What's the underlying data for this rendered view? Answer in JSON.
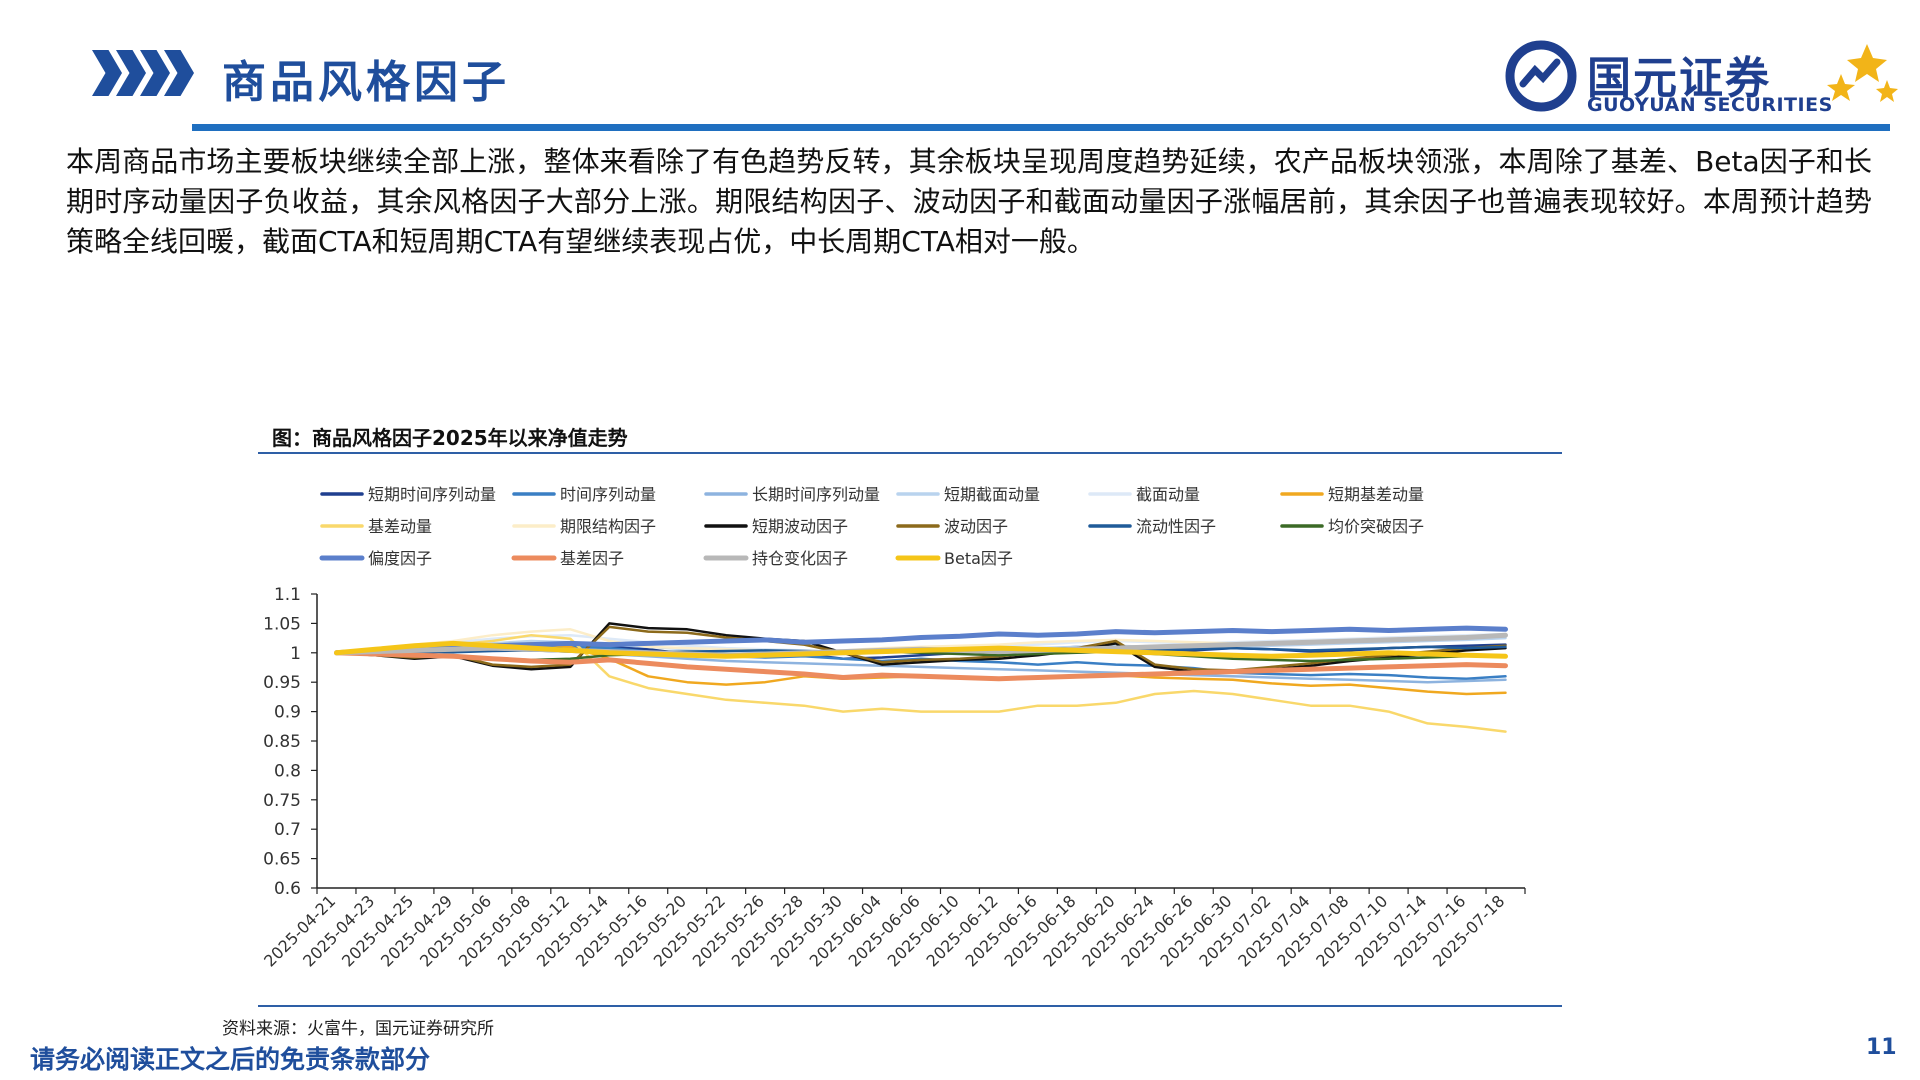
{
  "header": {
    "title": "商品风格因子",
    "logo_cn": "国元证券",
    "logo_en": "GUOYUAN SECURITIES"
  },
  "body_text": "本周商品市场主要板块继续全部上涨，整体来看除了有色趋势反转，其余板块呈现周度趋势延续，农产品板块领涨，本周除了基差、Beta因子和长期时序动量因子负收益，其余风格因子大部分上涨。期限结构因子、波动因子和截面动量因子涨幅居前，其余因子也普遍表现较好。本周预计趋势策略全线回暖，截面CTA和短周期CTA有望继续表现占优，中长周期CTA相对一般。",
  "chart_title": "图：商品风格因子2025年以来净值走势",
  "source": "资料来源：火富牛，国元证券研究所",
  "footer": {
    "disclaimer": "请务必阅读正文之后的免责条款部分",
    "page": "11"
  },
  "colors": {
    "brand_blue": "#1f4e9c",
    "rule_blue": "#1f6fc0",
    "logo_gold": "#f2b418"
  },
  "chart_data": {
    "type": "line",
    "x": [
      "2025-04-21",
      "2025-04-23",
      "2025-04-25",
      "2025-04-29",
      "2025-05-06",
      "2025-05-08",
      "2025-05-12",
      "2025-05-14",
      "2025-05-16",
      "2025-05-20",
      "2025-05-22",
      "2025-05-26",
      "2025-05-28",
      "2025-05-30",
      "2025-06-04",
      "2025-06-06",
      "2025-06-10",
      "2025-06-12",
      "2025-06-16",
      "2025-06-18",
      "2025-06-20",
      "2025-06-24",
      "2025-06-26",
      "2025-06-30",
      "2025-07-02",
      "2025-07-04",
      "2025-07-08",
      "2025-07-10",
      "2025-07-14",
      "2025-07-16",
      "2025-07-18"
    ],
    "y_ticks": [
      "1.1",
      "1.05",
      "1",
      "0.95",
      "0.9",
      "0.85",
      "0.8",
      "0.75",
      "0.7",
      "0.65",
      "0.6"
    ],
    "ylim": [
      0.6,
      1.1
    ],
    "grid": false,
    "legend_position": "top",
    "series": [
      {
        "name": "短期时间序列动量",
        "color": "#1f3f8f",
        "width": 2.5,
        "values": [
          1,
          1.002,
          0.998,
          1.004,
          1.006,
          1.004,
          1.008,
          1.01,
          1.006,
          0.998,
          0.996,
          0.994,
          0.998,
          0.99,
          0.992,
          0.996,
          1,
          1.004,
          1.006,
          1.01,
          1.012,
          1.006,
          1.004,
          1.008,
          1.006,
          1.002,
          1.004,
          1.008,
          1.01,
          1.012,
          1.014
        ]
      },
      {
        "name": "时间序列动量",
        "color": "#3a7fc4",
        "width": 2.5,
        "values": [
          1,
          1.002,
          1.004,
          1.006,
          1.01,
          1.012,
          1.01,
          1.008,
          1.002,
          0.996,
          0.994,
          0.992,
          0.994,
          0.99,
          0.986,
          0.99,
          0.986,
          0.984,
          0.98,
          0.984,
          0.98,
          0.978,
          0.974,
          0.966,
          0.964,
          0.962,
          0.964,
          0.962,
          0.958,
          0.956,
          0.96
        ]
      },
      {
        "name": "长期时间序列动量",
        "color": "#8db3df",
        "width": 2.5,
        "values": [
          1,
          1.001,
          1.002,
          1.004,
          1.006,
          1.004,
          1.002,
          0.998,
          0.994,
          0.99,
          0.986,
          0.984,
          0.982,
          0.98,
          0.978,
          0.976,
          0.974,
          0.972,
          0.97,
          0.968,
          0.966,
          0.964,
          0.962,
          0.96,
          0.958,
          0.956,
          0.954,
          0.952,
          0.95,
          0.952,
          0.954
        ]
      },
      {
        "name": "短期截面动量",
        "color": "#b9d3ee",
        "width": 2.5,
        "values": [
          1,
          1.004,
          1.008,
          1.012,
          1.016,
          1.02,
          1.018,
          1.014,
          1.01,
          1.006,
          1.004,
          1.002,
          1,
          0.998,
          1,
          1.002,
          1.004,
          1.006,
          1.008,
          1.01,
          1.012,
          1.01,
          1.008,
          1.01,
          1.012,
          1.014,
          1.016,
          1.018,
          1.02,
          1.022,
          1.025
        ]
      },
      {
        "name": "截面动量",
        "color": "#dde9f7",
        "width": 2.5,
        "values": [
          1,
          1.006,
          1.012,
          1.018,
          1.024,
          1.028,
          1.03,
          1.024,
          1.018,
          1.012,
          1.008,
          1.006,
          1.004,
          1,
          1.004,
          1.008,
          1.01,
          1.012,
          1.014,
          1.018,
          1.02,
          1.018,
          1.016,
          1.018,
          1.02,
          1.022,
          1.024,
          1.026,
          1.028,
          1.03,
          1.032
        ]
      },
      {
        "name": "短期基差动量",
        "color": "#f0a820",
        "width": 2.5,
        "values": [
          1,
          1.004,
          1.006,
          1.008,
          1.012,
          1.016,
          1.01,
          0.99,
          0.96,
          0.95,
          0.946,
          0.95,
          0.96,
          0.956,
          0.958,
          0.96,
          0.958,
          0.956,
          0.958,
          0.96,
          0.962,
          0.958,
          0.956,
          0.954,
          0.948,
          0.944,
          0.946,
          0.94,
          0.934,
          0.93,
          0.932
        ]
      },
      {
        "name": "基差动量",
        "color": "#f9d86b",
        "width": 2.5,
        "values": [
          1,
          1.004,
          1.01,
          1.014,
          1.02,
          1.03,
          1.024,
          0.96,
          0.94,
          0.93,
          0.92,
          0.915,
          0.91,
          0.9,
          0.905,
          0.9,
          0.9,
          0.9,
          0.91,
          0.91,
          0.915,
          0.93,
          0.935,
          0.93,
          0.92,
          0.91,
          0.91,
          0.9,
          0.88,
          0.874,
          0.866
        ]
      },
      {
        "name": "期限结构因子",
        "color": "#fcedc8",
        "width": 2.5,
        "values": [
          1,
          1.006,
          1.014,
          1.02,
          1.03,
          1.036,
          1.04,
          1.02,
          1.01,
          1.008,
          1.006,
          1.004,
          1.002,
          1.004,
          1.008,
          1.01,
          1.012,
          1.014,
          1.018,
          1.02,
          1.022,
          1.02,
          1.018,
          1.016,
          1.018,
          1.02,
          1.022,
          1.024,
          1.026,
          1.028,
          1.03
        ]
      },
      {
        "name": "短期波动因子",
        "color": "#111111",
        "width": 2.5,
        "values": [
          1,
          0.996,
          0.99,
          0.994,
          0.978,
          0.972,
          0.976,
          1.05,
          1.042,
          1.04,
          1.03,
          1.024,
          1.02,
          1.0,
          0.98,
          0.984,
          0.988,
          0.99,
          0.996,
          1.004,
          1.016,
          0.976,
          0.968,
          0.966,
          0.972,
          0.978,
          0.986,
          0.992,
          0.998,
          1.004,
          1.008
        ]
      },
      {
        "name": "波动因子",
        "color": "#8c6a1b",
        "width": 2.5,
        "values": [
          1,
          0.996,
          0.992,
          0.996,
          0.98,
          0.976,
          0.98,
          1.044,
          1.036,
          1.034,
          1.026,
          1.02,
          1.014,
          1.0,
          0.984,
          0.988,
          0.99,
          0.994,
          1.0,
          1.008,
          1.02,
          0.98,
          0.972,
          0.97,
          0.976,
          0.982,
          0.99,
          0.996,
          1.002,
          1.008,
          1.012
        ]
      },
      {
        "name": "流动性因子",
        "color": "#1f5b99",
        "width": 2.5,
        "values": [
          1,
          1.001,
          1.002,
          1.001,
          1.003,
          1.004,
          1.002,
          1.0,
          1.001,
          1.002,
          1.003,
          1.004,
          1.003,
          1.002,
          1.004,
          1.005,
          1.006,
          1.004,
          1.006,
          1.008,
          1.006,
          1.004,
          1.006,
          1.008,
          1.006,
          1.004,
          1.006,
          1.008,
          1.01,
          1.008,
          1.01
        ]
      },
      {
        "name": "均价突破因子",
        "color": "#3b6a26",
        "width": 2.5,
        "values": [
          1,
          0.998,
          0.996,
          0.994,
          0.99,
          0.988,
          0.99,
          0.996,
          0.998,
          1.0,
          0.998,
          0.996,
          0.998,
          1.0,
          1.002,
          1.0,
          0.998,
          0.996,
          0.998,
          1.0,
          1.002,
          0.998,
          0.994,
          0.99,
          0.988,
          0.986,
          0.988,
          0.99,
          0.992,
          0.994,
          0.996
        ]
      },
      {
        "name": "偏度因子",
        "color": "#5b7fcb",
        "width": 5,
        "values": [
          1,
          1.004,
          1.008,
          1.01,
          1.012,
          1.014,
          1.016,
          1.014,
          1.016,
          1.018,
          1.02,
          1.022,
          1.018,
          1.02,
          1.022,
          1.026,
          1.028,
          1.032,
          1.03,
          1.032,
          1.036,
          1.034,
          1.036,
          1.038,
          1.036,
          1.038,
          1.04,
          1.038,
          1.04,
          1.042,
          1.04
        ]
      },
      {
        "name": "基差因子",
        "color": "#ec8b5e",
        "width": 5,
        "values": [
          1,
          0.998,
          0.996,
          0.994,
          0.99,
          0.986,
          0.984,
          0.988,
          0.982,
          0.976,
          0.972,
          0.968,
          0.964,
          0.958,
          0.962,
          0.96,
          0.958,
          0.956,
          0.958,
          0.96,
          0.962,
          0.964,
          0.966,
          0.968,
          0.97,
          0.972,
          0.974,
          0.976,
          0.978,
          0.98,
          0.978
        ]
      },
      {
        "name": "持仓变化因子",
        "color": "#b8b8b8",
        "width": 5,
        "values": [
          1,
          1.002,
          1.004,
          1.006,
          1.008,
          1.006,
          1.004,
          1.002,
          1.0,
          0.998,
          0.996,
          0.998,
          1.0,
          1.002,
          1.004,
          1.006,
          1.004,
          1.002,
          1.004,
          1.006,
          1.008,
          1.01,
          1.012,
          1.014,
          1.016,
          1.018,
          1.02,
          1.022,
          1.024,
          1.026,
          1.03
        ]
      },
      {
        "name": "Beta因子",
        "color": "#f5c518",
        "width": 5,
        "values": [
          1,
          1.006,
          1.012,
          1.016,
          1.012,
          1.008,
          1.004,
          1.0,
          0.998,
          0.996,
          0.994,
          0.996,
          0.998,
          1.0,
          1.002,
          1.004,
          1.006,
          1.008,
          1.006,
          1.004,
          1.002,
          1.0,
          0.998,
          0.996,
          0.994,
          0.996,
          0.998,
          1.0,
          0.998,
          0.996,
          0.994
        ]
      }
    ]
  }
}
